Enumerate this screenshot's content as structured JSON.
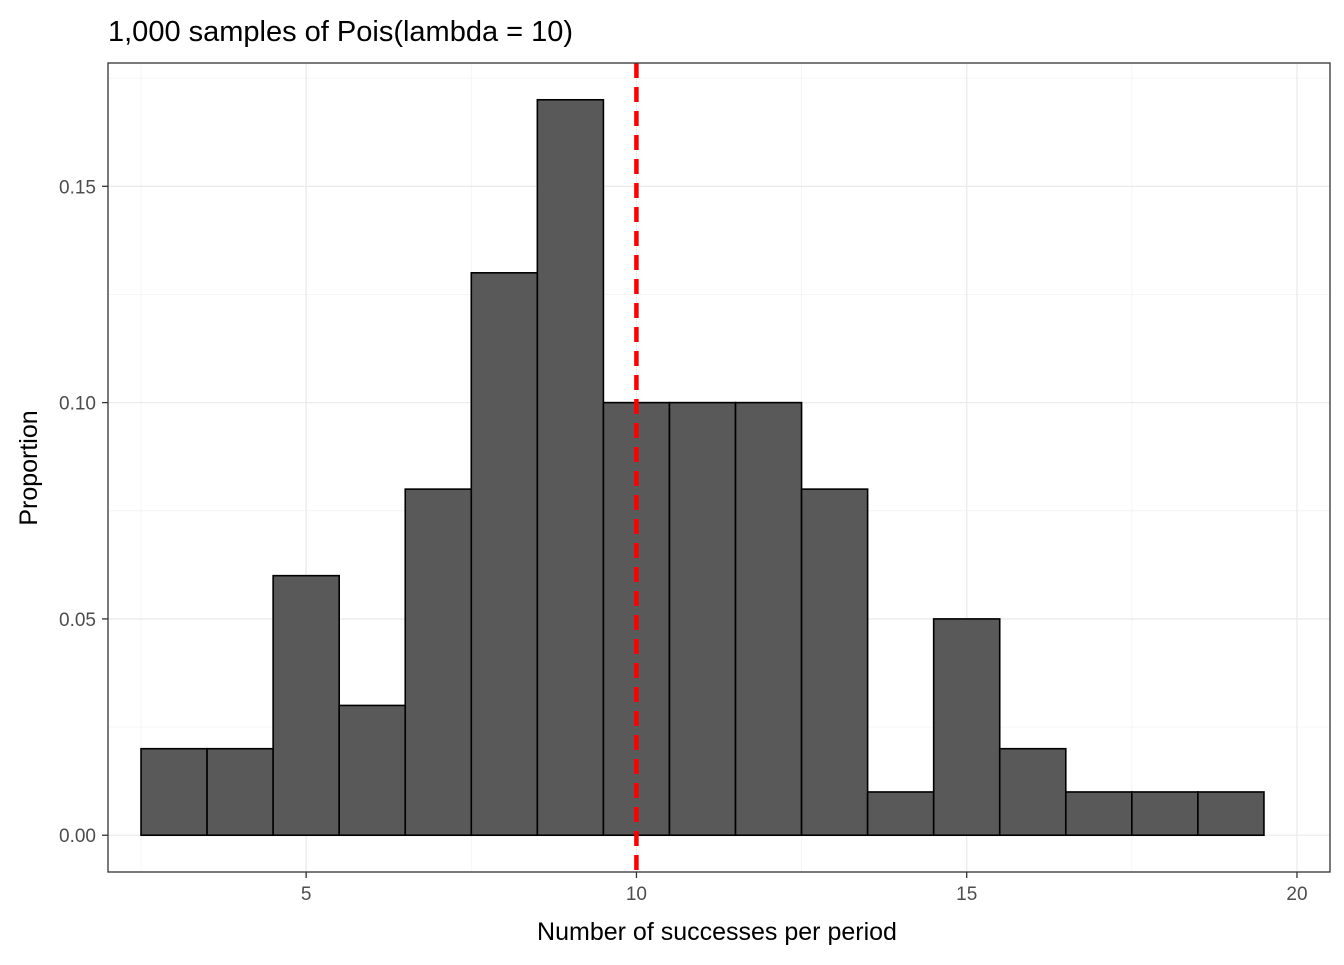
{
  "chart_data": {
    "type": "bar",
    "title": "1,000 samples of Pois(lambda = 10)",
    "xlabel": "Number of successes per period",
    "ylabel": "Proportion",
    "x": [
      3,
      4,
      5,
      6,
      7,
      8,
      9,
      10,
      11,
      12,
      13,
      14,
      15,
      16,
      17,
      18,
      19
    ],
    "values": [
      0.02,
      0.02,
      0.06,
      0.03,
      0.08,
      0.13,
      0.17,
      0.1,
      0.1,
      0.1,
      0.08,
      0.01,
      0.05,
      0.02,
      0.01,
      0.01,
      0.01
    ],
    "bin_width": 1,
    "xlim": [
      2.0,
      20.5
    ],
    "ylim": [
      -0.0085,
      0.1785
    ],
    "x_ticks": [
      5,
      10,
      15,
      20
    ],
    "x_tick_labels": [
      "5",
      "10",
      "15",
      "20"
    ],
    "y_ticks": [
      0.0,
      0.05,
      0.1,
      0.15
    ],
    "y_tick_labels": [
      "0.00",
      "0.05",
      "0.10",
      "0.15"
    ],
    "grid": true,
    "bar_color": "#595959",
    "bar_outline_color": "#000000",
    "reference_line": {
      "axis": "x",
      "value": 10,
      "color": "#ff0000",
      "style": "dashed"
    }
  }
}
